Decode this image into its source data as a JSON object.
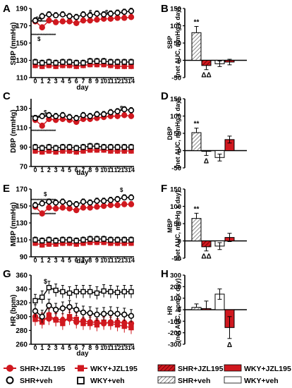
{
  "colors": {
    "red": "#d0181f",
    "black": "#000000",
    "hatch": "#666666",
    "white": "#ffffff"
  },
  "x_axis_label": "day",
  "x_ticks": [
    "0",
    "1",
    "2",
    "3",
    "4",
    "5",
    "6",
    "7",
    "8",
    "9",
    "10",
    "11",
    "12",
    "13",
    "14"
  ],
  "panels": {
    "A": {
      "letter": "A",
      "ylabel": "SBP (mmHg)"
    },
    "C": {
      "letter": "C",
      "ylabel": "DBP (mmHg)"
    },
    "E": {
      "letter": "E",
      "ylabel": "MBP (mmHg)"
    },
    "G": {
      "letter": "G",
      "ylabel": "HR (bpm)"
    },
    "B": {
      "letter": "B",
      "ylabel_line1": "SBP",
      "ylabel_line2": "(net AUC, mmHg x day)"
    },
    "D": {
      "letter": "D",
      "ylabel_line1": "DBP",
      "ylabel_line2": "(net AUC, mmHg x day)"
    },
    "F": {
      "letter": "F",
      "ylabel_line1": "MBP",
      "ylabel_line2": "(net AUC, mmHg x day)"
    },
    "H": {
      "letter": "H",
      "ylabel_line1": "HR",
      "ylabel_line2": "(net AUC, bpm x day)"
    }
  },
  "legend": {
    "shr_jzl": "SHR+JZL195",
    "wky_jzl": "WKY+JZL195",
    "shr_veh": "SHR+veh",
    "wky_veh": "WKY+veh"
  },
  "annotations": {
    "double_star": "**",
    "double_delta": "ΔΔ",
    "single_delta": "Δ",
    "dollar": "$",
    "double_dollar": "$$",
    "star_run": "*******************"
  },
  "chart_data": [
    {
      "type": "line",
      "panel": "A",
      "xlabel": "day",
      "ylabel": "SBP (mmHg)",
      "ylim": [
        110,
        190
      ],
      "yticks": [
        110,
        130,
        150,
        170,
        190
      ],
      "x": [
        0,
        1,
        2,
        3,
        4,
        5,
        6,
        7,
        8,
        9,
        10,
        11,
        12,
        13,
        14
      ],
      "series": [
        {
          "name": "SHR+veh",
          "values": [
            176,
            181,
            183,
            182,
            183,
            181,
            180,
            183,
            182,
            184,
            183,
            184,
            185,
            186,
            187
          ]
        },
        {
          "name": "SHR+JZL195",
          "values": [
            175,
            168,
            176,
            174,
            175,
            175,
            173,
            176,
            176,
            177,
            178,
            178,
            179,
            179,
            180
          ]
        },
        {
          "name": "WKY+veh",
          "values": [
            128,
            127,
            128,
            127,
            128,
            128,
            127,
            127,
            129,
            129,
            129,
            128,
            128,
            128,
            128
          ]
        },
        {
          "name": "WKY+JZL195",
          "values": [
            124,
            123,
            124,
            123,
            124,
            124,
            123,
            124,
            125,
            125,
            125,
            124,
            123,
            123,
            123
          ]
        }
      ]
    },
    {
      "type": "line",
      "panel": "C",
      "xlabel": "day",
      "ylabel": "DBP (mmHg)",
      "ylim": [
        70,
        140
      ],
      "yticks": [
        70,
        90,
        110,
        130
      ],
      "x": [
        0,
        1,
        2,
        3,
        4,
        5,
        6,
        7,
        8,
        9,
        10,
        11,
        12,
        13,
        14
      ],
      "series": [
        {
          "name": "SHR+veh",
          "values": [
            120,
            122,
            123,
            122,
            123,
            121,
            120,
            123,
            122,
            124,
            124,
            126,
            127,
            129,
            128
          ]
        },
        {
          "name": "SHR+JZL195",
          "values": [
            118,
            112,
            119,
            118,
            119,
            118,
            116,
            119,
            119,
            120,
            121,
            122,
            122,
            123,
            122
          ]
        },
        {
          "name": "WKY+veh",
          "values": [
            90,
            89,
            90,
            89,
            90,
            90,
            89,
            90,
            91,
            91,
            90,
            90,
            90,
            90,
            90
          ]
        },
        {
          "name": "WKY+JZL195",
          "values": [
            86,
            85,
            86,
            85,
            86,
            86,
            85,
            86,
            87,
            87,
            87,
            86,
            86,
            86,
            86
          ]
        }
      ]
    },
    {
      "type": "line",
      "panel": "E",
      "xlabel": "day",
      "ylabel": "MBP (mmHg)",
      "ylim": [
        90,
        170
      ],
      "yticks": [
        90,
        110,
        130,
        150,
        170
      ],
      "x": [
        0,
        1,
        2,
        3,
        4,
        5,
        6,
        7,
        8,
        9,
        10,
        11,
        12,
        13,
        14
      ],
      "series": [
        {
          "name": "SHR+veh",
          "values": [
            151,
            153,
            155,
            154,
            155,
            153,
            152,
            155,
            154,
            156,
            156,
            157,
            158,
            160,
            160
          ]
        },
        {
          "name": "SHR+JZL195",
          "values": [
            149,
            141,
            148,
            147,
            148,
            147,
            145,
            148,
            148,
            149,
            150,
            151,
            151,
            152,
            152
          ]
        },
        {
          "name": "WKY+veh",
          "values": [
            110,
            109,
            110,
            109,
            110,
            110,
            109,
            110,
            111,
            111,
            111,
            110,
            110,
            110,
            110
          ]
        },
        {
          "name": "WKY+JZL195",
          "values": [
            106,
            104,
            105,
            105,
            106,
            106,
            105,
            106,
            107,
            107,
            107,
            106,
            106,
            106,
            106
          ]
        }
      ]
    },
    {
      "type": "line",
      "panel": "G",
      "xlabel": "day",
      "ylabel": "HR (bpm)",
      "ylim": [
        260,
        360
      ],
      "yticks": [
        260,
        280,
        300,
        320,
        340,
        360
      ],
      "x": [
        0,
        1,
        2,
        3,
        4,
        5,
        6,
        7,
        8,
        9,
        10,
        11,
        12,
        13,
        14
      ],
      "series": [
        {
          "name": "SHR+veh",
          "values": [
            308,
            300,
            316,
            310,
            312,
            314,
            310,
            306,
            305,
            303,
            304,
            305,
            304,
            303,
            301
          ]
        },
        {
          "name": "SHR+JZL195",
          "values": [
            300,
            296,
            297,
            296,
            295,
            297,
            292,
            294,
            292,
            292,
            290,
            292,
            292,
            291,
            290
          ]
        },
        {
          "name": "WKY+veh",
          "values": [
            323,
            328,
            342,
            338,
            336,
            334,
            336,
            336,
            336,
            334,
            337,
            336,
            335,
            336,
            336
          ]
        },
        {
          "name": "WKY+JZL195",
          "values": [
            296,
            292,
            302,
            295,
            290,
            300,
            296,
            290,
            290,
            288,
            292,
            290,
            288,
            286,
            284
          ]
        }
      ]
    },
    {
      "type": "bar",
      "panel": "B",
      "ylabel": "SBP (net AUC, mmHg x day)",
      "ylim": [
        -50,
        150
      ],
      "yticks": [
        -50,
        0,
        50,
        100,
        150
      ],
      "bars": [
        {
          "group": "SHR",
          "name": "SHR+veh",
          "value": 80,
          "err": 18
        },
        {
          "group": "SHR",
          "name": "SHR+JZL195",
          "value": -15,
          "err": 12
        },
        {
          "group": "WKY",
          "name": "WKY+veh",
          "value": -10,
          "err": 8
        },
        {
          "group": "WKY",
          "name": "WKY+JZL195",
          "value": -5,
          "err": 8
        }
      ]
    },
    {
      "type": "bar",
      "panel": "D",
      "ylabel": "DBP (net AUC, mmHg x day)",
      "ylim": [
        -50,
        150
      ],
      "yticks": [
        -50,
        0,
        50,
        100,
        150
      ],
      "bars": [
        {
          "group": "SHR",
          "name": "SHR+veh",
          "value": 52,
          "err": 13
        },
        {
          "group": "SHR",
          "name": "SHR+JZL195",
          "value": -2,
          "err": 12
        },
        {
          "group": "WKY",
          "name": "WKY+veh",
          "value": -20,
          "err": 10
        },
        {
          "group": "WKY",
          "name": "WKY+JZL195",
          "value": 32,
          "err": 10
        }
      ]
    },
    {
      "type": "bar",
      "panel": "F",
      "ylabel": "MBP (net AUC, mmHg x day)",
      "ylim": [
        -50,
        150
      ],
      "yticks": [
        -50,
        0,
        50,
        100,
        150
      ],
      "bars": [
        {
          "group": "SHR",
          "name": "SHR+veh",
          "value": 65,
          "err": 15
        },
        {
          "group": "SHR",
          "name": "SHR+JZL195",
          "value": -17,
          "err": 12
        },
        {
          "group": "WKY",
          "name": "WKY+veh",
          "value": -15,
          "err": 10
        },
        {
          "group": "WKY",
          "name": "WKY+JZL195",
          "value": 10,
          "err": 12
        }
      ]
    },
    {
      "type": "bar",
      "panel": "H",
      "ylabel": "HR (net AUC, bpm x day)",
      "ylim": [
        -300,
        300
      ],
      "yticks": [
        -300,
        -200,
        -100,
        0,
        100,
        200,
        300
      ],
      "bars": [
        {
          "group": "SHR",
          "name": "SHR+veh",
          "value": 20,
          "err": 30
        },
        {
          "group": "SHR",
          "name": "SHR+JZL195",
          "value": 10,
          "err": 65
        },
        {
          "group": "WKY",
          "name": "WKY+veh",
          "value": 135,
          "err": 45
        },
        {
          "group": "WKY",
          "name": "WKY+JZL195",
          "value": -155,
          "err": 95
        }
      ]
    }
  ]
}
